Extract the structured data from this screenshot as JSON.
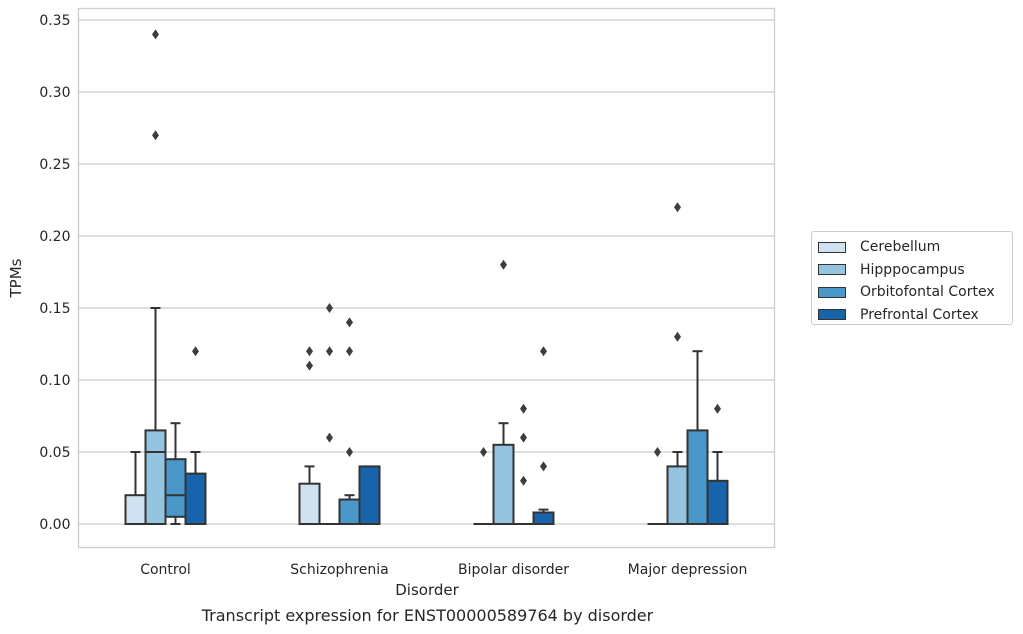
{
  "chart_data": {
    "type": "box",
    "xlabel": "Disorder",
    "ylabel": "TPMs",
    "ylim": [
      -0.017,
      0.357
    ],
    "yticks": [
      "0.00",
      "0.05",
      "0.10",
      "0.15",
      "0.20",
      "0.25",
      "0.30",
      "0.35"
    ],
    "ytick_values": [
      0.0,
      0.05,
      0.1,
      0.15,
      0.2,
      0.25,
      0.3,
      0.35
    ],
    "categories": [
      "Control",
      "Schizophrenia",
      "Bipolar disorder",
      "Major depression"
    ],
    "grid": true,
    "legend_position": "right",
    "series": [
      {
        "name": "Cerebellum",
        "color": "#d0e1f2",
        "boxes": [
          {
            "q1": 0.0,
            "median": 0.0,
            "q3": 0.02,
            "whisker_low": 0.0,
            "whisker_high": 0.05,
            "outliers": []
          },
          {
            "q1": 0.0,
            "median": 0.0,
            "q3": 0.028,
            "whisker_low": 0.0,
            "whisker_high": 0.04,
            "outliers": [
              0.11,
              0.12
            ]
          },
          {
            "q1": 0.0,
            "median": 0.0,
            "q3": 0.0,
            "whisker_low": 0.0,
            "whisker_high": 0.0,
            "outliers": [
              0.05
            ]
          },
          {
            "q1": 0.0,
            "median": 0.0,
            "q3": 0.0,
            "whisker_low": 0.0,
            "whisker_high": 0.0,
            "outliers": [
              0.05
            ]
          }
        ]
      },
      {
        "name": "Hipppocampus",
        "color": "#94c4df",
        "boxes": [
          {
            "q1": 0.0,
            "median": 0.05,
            "q3": 0.065,
            "whisker_low": 0.0,
            "whisker_high": 0.15,
            "outliers": [
              0.27,
              0.34
            ]
          },
          {
            "q1": 0.0,
            "median": 0.0,
            "q3": 0.0,
            "whisker_low": 0.0,
            "whisker_high": 0.0,
            "outliers": [
              0.06,
              0.12,
              0.15
            ]
          },
          {
            "q1": 0.0,
            "median": 0.0,
            "q3": 0.055,
            "whisker_low": 0.0,
            "whisker_high": 0.07,
            "outliers": [
              0.18
            ]
          },
          {
            "q1": 0.0,
            "median": 0.0,
            "q3": 0.04,
            "whisker_low": 0.0,
            "whisker_high": 0.05,
            "outliers": [
              0.13,
              0.22
            ]
          }
        ]
      },
      {
        "name": "Orbitofontal Cortex",
        "color": "#4a98c9",
        "boxes": [
          {
            "q1": 0.005,
            "median": 0.02,
            "q3": 0.045,
            "whisker_low": 0.0,
            "whisker_high": 0.07,
            "outliers": []
          },
          {
            "q1": 0.0,
            "median": 0.0,
            "q3": 0.017,
            "whisker_low": 0.0,
            "whisker_high": 0.02,
            "outliers": [
              0.05,
              0.12,
              0.14
            ]
          },
          {
            "q1": 0.0,
            "median": 0.0,
            "q3": 0.0,
            "whisker_low": 0.0,
            "whisker_high": 0.0,
            "outliers": [
              0.03,
              0.06,
              0.08
            ]
          },
          {
            "q1": 0.0,
            "median": 0.0,
            "q3": 0.065,
            "whisker_low": 0.0,
            "whisker_high": 0.12,
            "outliers": []
          }
        ]
      },
      {
        "name": "Prefrontal Cortex",
        "color": "#1764ab",
        "boxes": [
          {
            "q1": 0.0,
            "median": 0.0,
            "q3": 0.035,
            "whisker_low": 0.0,
            "whisker_high": 0.05,
            "outliers": [
              0.12
            ]
          },
          {
            "q1": 0.0,
            "median": 0.0,
            "q3": 0.04,
            "whisker_low": 0.0,
            "whisker_high": 0.04,
            "outliers": []
          },
          {
            "q1": 0.0,
            "median": 0.0,
            "q3": 0.008,
            "whisker_low": 0.0,
            "whisker_high": 0.01,
            "outliers": [
              0.04,
              0.12
            ]
          },
          {
            "q1": 0.0,
            "median": 0.0,
            "q3": 0.03,
            "whisker_low": 0.0,
            "whisker_high": 0.05,
            "outliers": [
              0.08
            ]
          }
        ]
      }
    ]
  },
  "caption": "Transcript expression for ENST00000589764 by disorder"
}
